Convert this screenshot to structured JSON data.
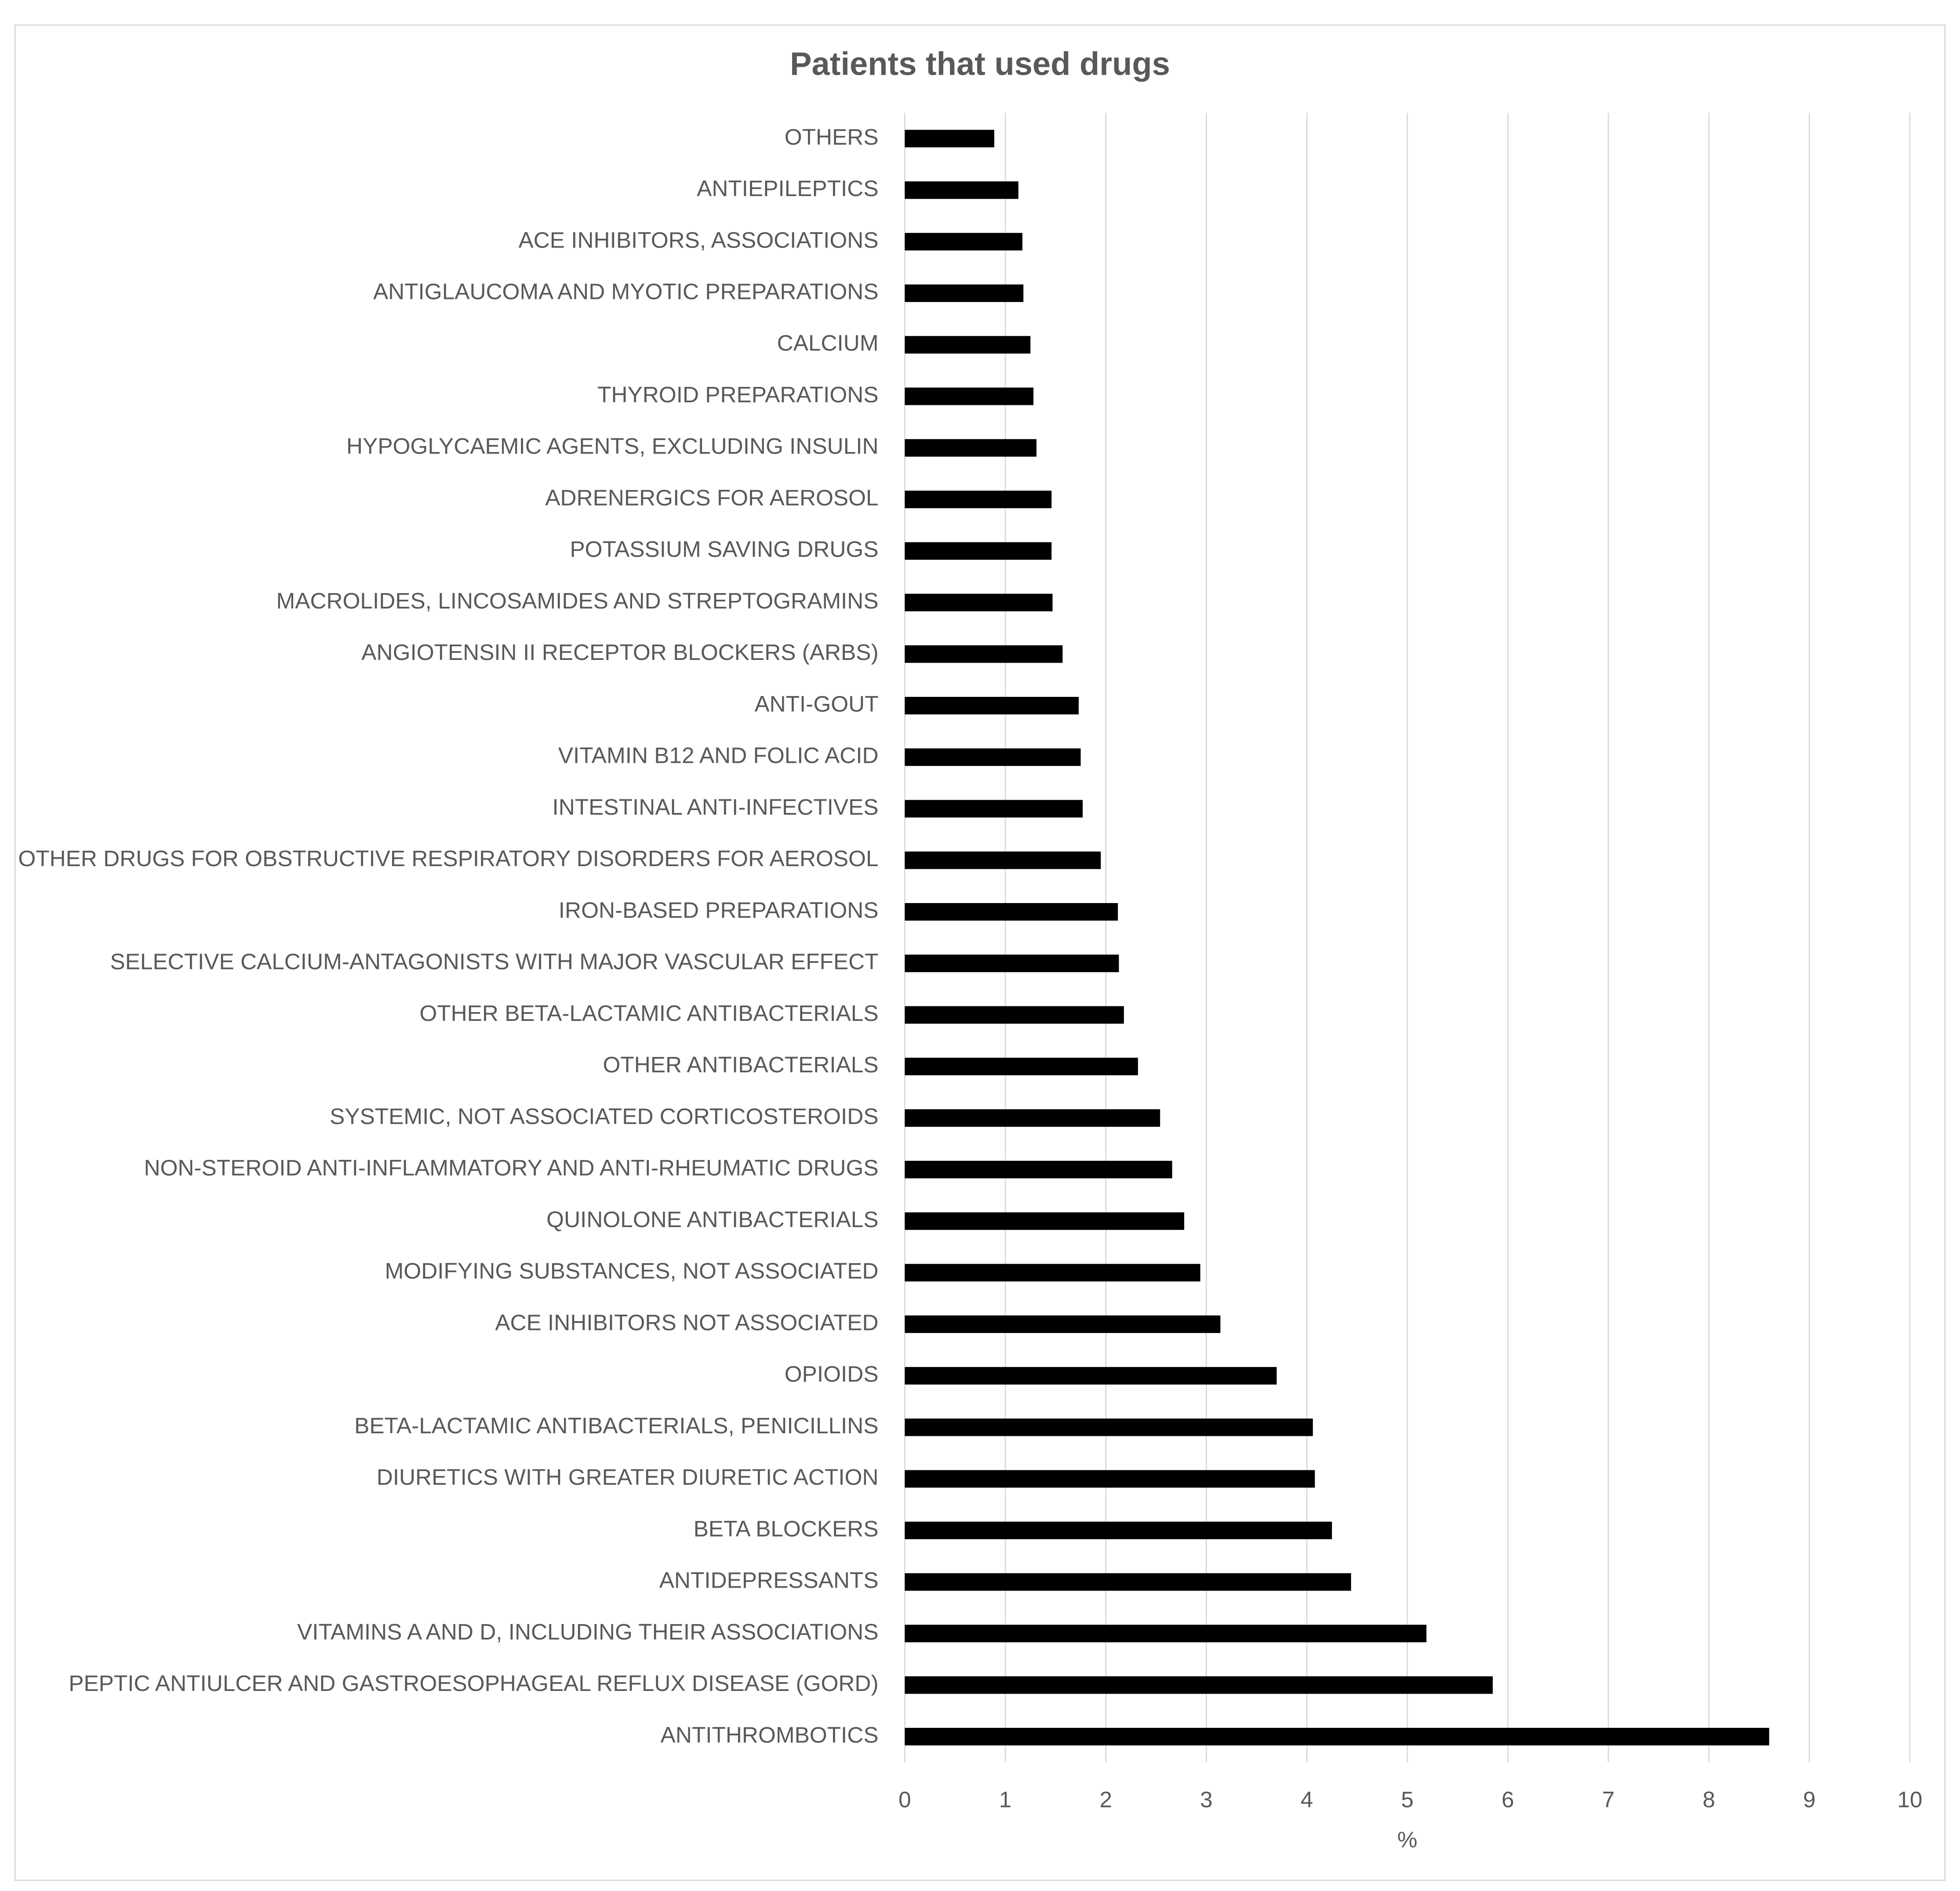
{
  "chart_data": {
    "type": "barh",
    "title": "Patients that used drugs",
    "xlabel": "%",
    "categories": [
      "OTHERS",
      "ANTIEPILEPTICS",
      "ACE INHIBITORS, ASSOCIATIONS",
      "ANTIGLAUCOMA AND MYOTIC PREPARATIONS",
      "CALCIUM",
      "THYROID PREPARATIONS",
      "HYPOGLYCAEMIC AGENTS, EXCLUDING INSULIN",
      "ADRENERGICS FOR AEROSOL",
      "POTASSIUM SAVING DRUGS",
      "MACROLIDES, LINCOSAMIDES AND STREPTOGRAMINS",
      "ANGIOTENSIN II RECEPTOR BLOCKERS (ARBS)",
      "ANTI-GOUT",
      "VITAMIN B12 AND FOLIC ACID",
      "INTESTINAL ANTI-INFECTIVES",
      "OTHER DRUGS FOR OBSTRUCTIVE RESPIRATORY DISORDERS FOR AEROSOL",
      "IRON-BASED PREPARATIONS",
      "SELECTIVE CALCIUM-ANTAGONISTS WITH MAJOR VASCULAR EFFECT",
      "OTHER BETA-LACTAMIC ANTIBACTERIALS",
      "OTHER ANTIBACTERIALS",
      "SYSTEMIC, NOT ASSOCIATED CORTICOSTEROIDS",
      "NON-STEROID ANTI-INFLAMMATORY AND ANTI-RHEUMATIC DRUGS",
      "QUINOLONE ANTIBACTERIALS",
      "MODIFYING SUBSTANCES, NOT ASSOCIATED",
      "ACE INHIBITORS NOT ASSOCIATED",
      "OPIOIDS",
      "BETA-LACTAMIC ANTIBACTERIALS, PENICILLINS",
      "DIURETICS WITH GREATER DIURETIC ACTION",
      "BETA BLOCKERS",
      "ANTIDEPRESSANTS",
      "VITAMINS A AND D, INCLUDING THEIR ASSOCIATIONS",
      "PEPTIC ANTIULCER AND GASTROESOPHAGEAL REFLUX DISEASE (GORD)",
      "ANTITHROMBOTICS"
    ],
    "values": [
      0.89,
      1.13,
      1.17,
      1.18,
      1.25,
      1.28,
      1.31,
      1.46,
      1.46,
      1.47,
      1.57,
      1.73,
      1.75,
      1.77,
      1.95,
      2.12,
      2.13,
      2.18,
      2.32,
      2.54,
      2.66,
      2.78,
      2.94,
      3.14,
      3.7,
      4.06,
      4.08,
      4.25,
      4.44,
      5.19,
      5.85,
      8.6
    ],
    "color": "#000000",
    "xlim": [
      0,
      10
    ],
    "xticks": [
      0,
      1,
      2,
      3,
      4,
      5,
      6,
      7,
      8,
      9,
      10
    ],
    "grid": true
  }
}
